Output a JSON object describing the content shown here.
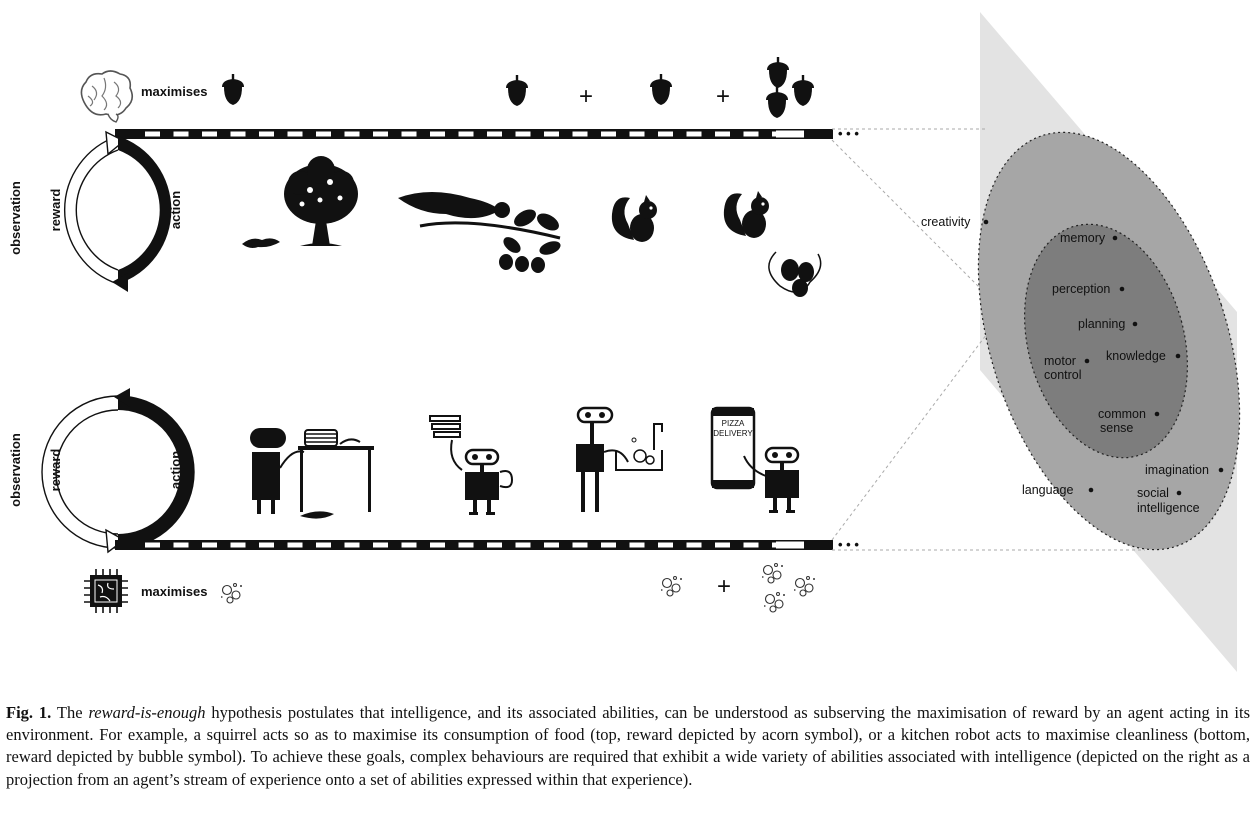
{
  "top": {
    "maximises_label": "maximises",
    "reward_icon": "acorn-icon",
    "agent_icon": "brain-icon",
    "cycle": {
      "observation": "observation",
      "reward": "reward",
      "action": "action"
    },
    "plus_1": "+",
    "plus_2": "+",
    "ellipsis": "• • •"
  },
  "bottom": {
    "maximises_label": "maximises",
    "reward_icon": "bubbles-icon",
    "agent_icon": "chip-icon",
    "cycle": {
      "observation": "observation",
      "reward": "reward",
      "action": "action"
    },
    "plus_1": "+",
    "ellipsis": "• • •",
    "phone_text_1": "PIZZA",
    "phone_text_2": "DELIVERY"
  },
  "abilities": {
    "outer": [
      {
        "label": "creativity"
      },
      {
        "label": "language"
      },
      {
        "label": "imagination"
      },
      {
        "label": "social",
        "label2": "intelligence"
      }
    ],
    "inner": [
      {
        "label": "memory"
      },
      {
        "label": "perception"
      },
      {
        "label": "planning"
      },
      {
        "label": "knowledge"
      },
      {
        "label": "motor",
        "label2": "control"
      },
      {
        "label": "common",
        "label2": "sense"
      }
    ]
  },
  "caption": {
    "label": "Fig. 1.",
    "text_1": " The ",
    "emph": "reward-is-enough",
    "text_2": " hypothesis postulates that intelligence, and its associated abilities, can be understood as subserving the maximisation of reward by an agent acting in its environment. For example, a squirrel acts so as to maximise its consumption of food (top, reward depicted by acorn symbol), or a kitchen robot acts to maximise cleanliness (bottom, reward depicted by bubble symbol). To achieve these goals, complex behaviours are required that exhibit a wide variety of abilities associated with intelligence (depicted on the right as a projection from an agent’s stream of experience onto a set of abilities expressed within that experience)."
  }
}
